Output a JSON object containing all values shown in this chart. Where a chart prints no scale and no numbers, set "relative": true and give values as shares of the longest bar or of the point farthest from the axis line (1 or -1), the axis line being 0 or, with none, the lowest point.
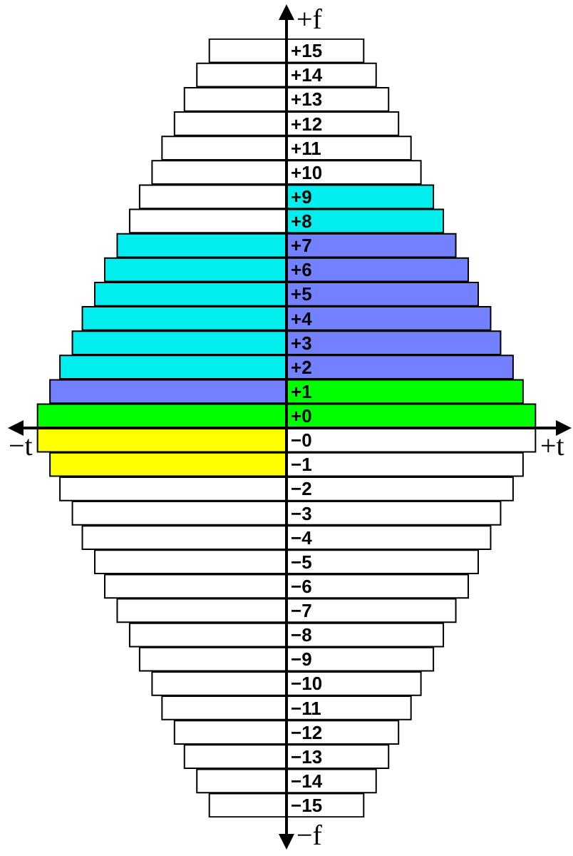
{
  "chart_data": [
    {
      "type": "bar",
      "orientation": "horizontal",
      "relative": true,
      "tick_labels": false,
      "categories": [
        "+15",
        "+14",
        "+13",
        "+12",
        "+11",
        "+10",
        "+9",
        "+8",
        "+7",
        "+6",
        "+5",
        "+4",
        "+3",
        "+2",
        "+1",
        "+0",
        "−0",
        "−1",
        "−2",
        "−3",
        "−4",
        "−5",
        "−6",
        "−7",
        "−8",
        "−9",
        "−10",
        "−11",
        "−12",
        "−13",
        "−14",
        "−15"
      ],
      "values": [
        -0.31,
        -0.36,
        -0.41,
        -0.45,
        -0.5,
        -0.54,
        -0.59,
        -0.63,
        -0.68,
        -0.73,
        -0.77,
        -0.82,
        -0.86,
        -0.91,
        -0.95,
        -1.0,
        -1.0,
        -0.95,
        -0.91,
        -0.86,
        -0.82,
        -0.77,
        -0.73,
        -0.68,
        -0.63,
        -0.59,
        -0.54,
        -0.5,
        -0.45,
        -0.41,
        -0.36,
        -0.31
      ],
      "colors": [
        "#ffffff",
        "#ffffff",
        "#ffffff",
        "#ffffff",
        "#ffffff",
        "#ffffff",
        "#ffffff",
        "#ffffff",
        "#00eeee",
        "#00eeee",
        "#00eeee",
        "#00eeee",
        "#00eeee",
        "#00eeee",
        "#7380ff",
        "#00ff00",
        "#ffff00",
        "#ffff00",
        "#ffffff",
        "#ffffff",
        "#ffffff",
        "#ffffff",
        "#ffffff",
        "#ffffff",
        "#ffffff",
        "#ffffff",
        "#ffffff",
        "#ffffff",
        "#ffffff",
        "#ffffff",
        "#ffffff",
        "#ffffff"
      ],
      "annotations": [
        "−t"
      ]
    },
    {
      "type": "bar",
      "orientation": "horizontal",
      "relative": true,
      "tick_labels": "y",
      "categories": [
        "+15",
        "+14",
        "+13",
        "+12",
        "+11",
        "+10",
        "+9",
        "+8",
        "+7",
        "+6",
        "+5",
        "+4",
        "+3",
        "+2",
        "+1",
        "+0",
        "−0",
        "−1",
        "−2",
        "−3",
        "−4",
        "−5",
        "−6",
        "−7",
        "−8",
        "−9",
        "−10",
        "−11",
        "−12",
        "−13",
        "−14",
        "−15"
      ],
      "values": [
        0.31,
        0.36,
        0.41,
        0.45,
        0.5,
        0.54,
        0.59,
        0.63,
        0.68,
        0.73,
        0.77,
        0.82,
        0.86,
        0.91,
        0.95,
        1.0,
        1.0,
        0.95,
        0.91,
        0.86,
        0.82,
        0.77,
        0.73,
        0.68,
        0.63,
        0.59,
        0.54,
        0.5,
        0.45,
        0.41,
        0.36,
        0.31
      ],
      "colors": [
        "#ffffff",
        "#ffffff",
        "#ffffff",
        "#ffffff",
        "#ffffff",
        "#ffffff",
        "#00eeee",
        "#00eeee",
        "#7380ff",
        "#7380ff",
        "#7380ff",
        "#7380ff",
        "#7380ff",
        "#7380ff",
        "#00ff00",
        "#00ff00",
        "#ffffff",
        "#ffffff",
        "#ffffff",
        "#ffffff",
        "#ffffff",
        "#ffffff",
        "#ffffff",
        "#ffffff",
        "#ffffff",
        "#ffffff",
        "#ffffff",
        "#ffffff",
        "#ffffff",
        "#ffffff",
        "#ffffff",
        "#ffffff"
      ],
      "annotations": [
        "+f",
        "−f",
        "+t"
      ]
    }
  ]
}
